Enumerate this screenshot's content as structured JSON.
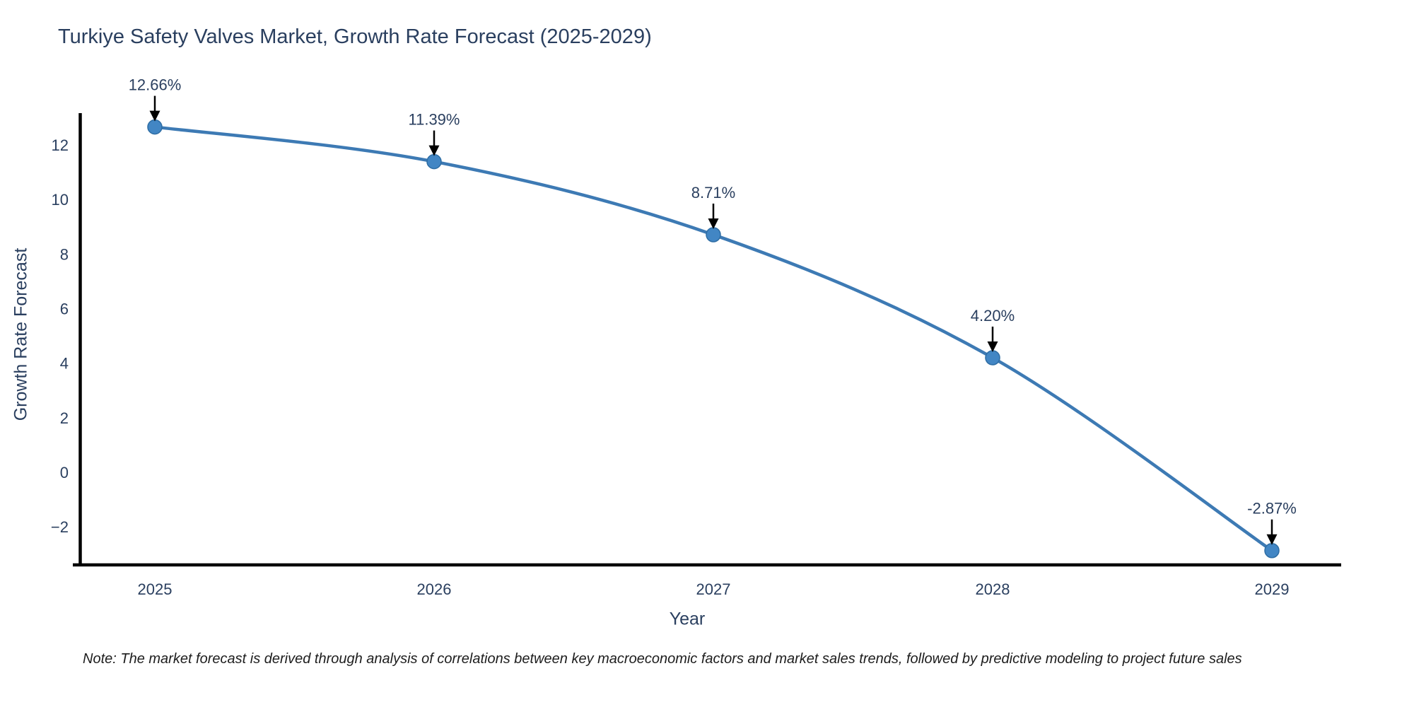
{
  "chart_data": {
    "type": "line",
    "title": "Turkiye Safety Valves Market, Growth Rate Forecast (2025-2029)",
    "xlabel": "Year",
    "ylabel": "Growth Rate Forecast",
    "x": [
      2025,
      2026,
      2027,
      2028,
      2029
    ],
    "values": [
      12.66,
      11.39,
      8.71,
      4.2,
      -2.87
    ],
    "point_labels": [
      "12.66%",
      "11.39%",
      "8.71%",
      "4.20%",
      "-2.87%"
    ],
    "xtick_labels": [
      "2025",
      "2026",
      "2027",
      "2028",
      "2029"
    ],
    "yticks": [
      12,
      10,
      8,
      6,
      4,
      2,
      0,
      -2
    ],
    "ytick_labels": [
      "12",
      "10",
      "8",
      "6",
      "4",
      "2",
      "0",
      "−2"
    ],
    "ylim": [
      -3.45,
      13.2
    ],
    "grid": false,
    "legend_position": "none",
    "line_color": "#3d7ab4",
    "marker_color": "#4286c4",
    "marker_edge_color": "#2e6da4",
    "axis_color": "#000000",
    "text_color": "#2a3f5f",
    "annotation_arrow_color": "#000000"
  },
  "note": {
    "text": "Note: The market forecast is derived through analysis of correlations between key macroeconomic factors and market sales trends, followed by predictive modeling to project future sales"
  }
}
